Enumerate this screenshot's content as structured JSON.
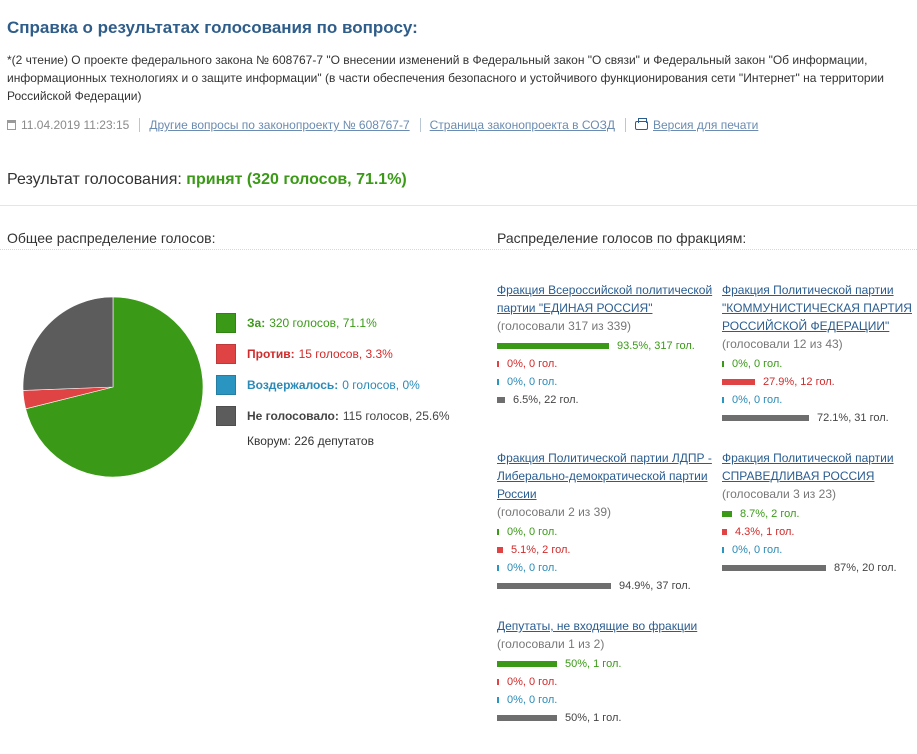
{
  "header": {
    "title": "Справка о результатах голосования по вопросу:",
    "subject": "*(2 чтение) О проекте федерального закона № 608767-7 \"О внесении изменений в Федеральный закон \"О связи\" и Федеральный закон \"Об информации, информационных технологиях и о защите информации\" (в части обеспечения безопасного и устойчивого функционирования сети \"Интернет\" на территории Российской Федерации)",
    "datetime": "11.04.2019 11:23:15",
    "links": {
      "other_questions": "Другие вопросы по законопроекту № 608767-7",
      "sozd_page": "Страница законопроекта в СОЗД",
      "print_version": "Версия для печати"
    }
  },
  "result": {
    "label": "Результат голосования:",
    "value": "принят (320 голосов, 71.1%)"
  },
  "overall": {
    "heading": "Общее распределение голосов:",
    "legend": [
      {
        "label": "За:",
        "text": "320 голосов, 71.1%",
        "color": "#3a9a17",
        "label_color": "#3a9a17",
        "percent": 71.1
      },
      {
        "label": "Против:",
        "text": "15 голосов, 3.3%",
        "color": "#e04343",
        "label_color": "#d02b2b",
        "percent": 3.3
      },
      {
        "label": "Воздержалось:",
        "text": "0 голосов, 0%",
        "color": "#2b95c1",
        "label_color": "#2b8ab7",
        "percent": 0
      },
      {
        "label": "Не голосовало:",
        "text": "115 голосов, 25.6%",
        "color": "#5c5c5c",
        "label_color": "#444444",
        "percent": 25.6
      }
    ],
    "quorum": "Кворум: 226 депутатов"
  },
  "factions_heading": "Распределение голосов по фракциям:",
  "factions": [
    {
      "name": "Фракция Всероссийской политической партии \"ЕДИНАЯ РОССИЯ\"",
      "voted": "(голосовали 317 из 339)",
      "bars": [
        {
          "kind": "za",
          "percent": 93.5,
          "text": "93.5%, 317 гол."
        },
        {
          "kind": "protiv",
          "percent": 0,
          "text": "0%, 0 гол."
        },
        {
          "kind": "vozd",
          "percent": 0,
          "text": "0%, 0 гол."
        },
        {
          "kind": "ne",
          "percent": 6.5,
          "text": "6.5%, 22 гол."
        }
      ]
    },
    {
      "name": "Фракция Политической партии \"КОММУНИСТИЧЕСКАЯ ПАРТИЯ РОССИЙСКОЙ ФЕДЕРАЦИИ\"",
      "voted": "(голосовали 12 из 43)",
      "bars": [
        {
          "kind": "za",
          "percent": 0,
          "text": "0%, 0 гол."
        },
        {
          "kind": "protiv",
          "percent": 27.9,
          "text": "27.9%, 12 гол."
        },
        {
          "kind": "vozd",
          "percent": 0,
          "text": "0%, 0 гол."
        },
        {
          "kind": "ne",
          "percent": 72.1,
          "text": "72.1%, 31 гол."
        }
      ]
    },
    {
      "name": "Фракция Политической партии ЛДПР - Либерально-демократической партии России",
      "voted": "(голосовали 2 из 39)",
      "bars": [
        {
          "kind": "za",
          "percent": 0,
          "text": "0%, 0 гол."
        },
        {
          "kind": "protiv",
          "percent": 5.1,
          "text": "5.1%, 2 гол."
        },
        {
          "kind": "vozd",
          "percent": 0,
          "text": "0%, 0 гол."
        },
        {
          "kind": "ne",
          "percent": 94.9,
          "text": "94.9%, 37 гол."
        }
      ]
    },
    {
      "name": "Фракция Политической партии СПРАВЕДЛИВАЯ РОССИЯ",
      "voted": "(голосовали 3 из 23)",
      "bars": [
        {
          "kind": "za",
          "percent": 8.7,
          "text": "8.7%, 2 гол."
        },
        {
          "kind": "protiv",
          "percent": 4.3,
          "text": "4.3%, 1 гол."
        },
        {
          "kind": "vozd",
          "percent": 0,
          "text": "0%, 0 гол."
        },
        {
          "kind": "ne",
          "percent": 87,
          "text": "87%, 20 гол."
        }
      ]
    },
    {
      "name": "Депутаты, не входящие во фракции",
      "voted": "(голосовали 1 из 2)",
      "bars": [
        {
          "kind": "za",
          "percent": 50,
          "text": "50%, 1 гол."
        },
        {
          "kind": "protiv",
          "percent": 0,
          "text": "0%, 0 гол."
        },
        {
          "kind": "vozd",
          "percent": 0,
          "text": "0%, 0 гол."
        },
        {
          "kind": "ne",
          "percent": 50,
          "text": "50%, 1 гол."
        }
      ]
    }
  ],
  "colors": {
    "za": "#3a9a17",
    "protiv": "#e04343",
    "vozd": "#2b95c1",
    "ne": "#6e6e6e",
    "za_text": "#3a9a17",
    "protiv_text": "#d02b2b",
    "vozd_text": "#2b8ab7",
    "ne_text": "#444444"
  },
  "icons": {
    "calendar": "calendar-icon",
    "print": "print-icon"
  }
}
